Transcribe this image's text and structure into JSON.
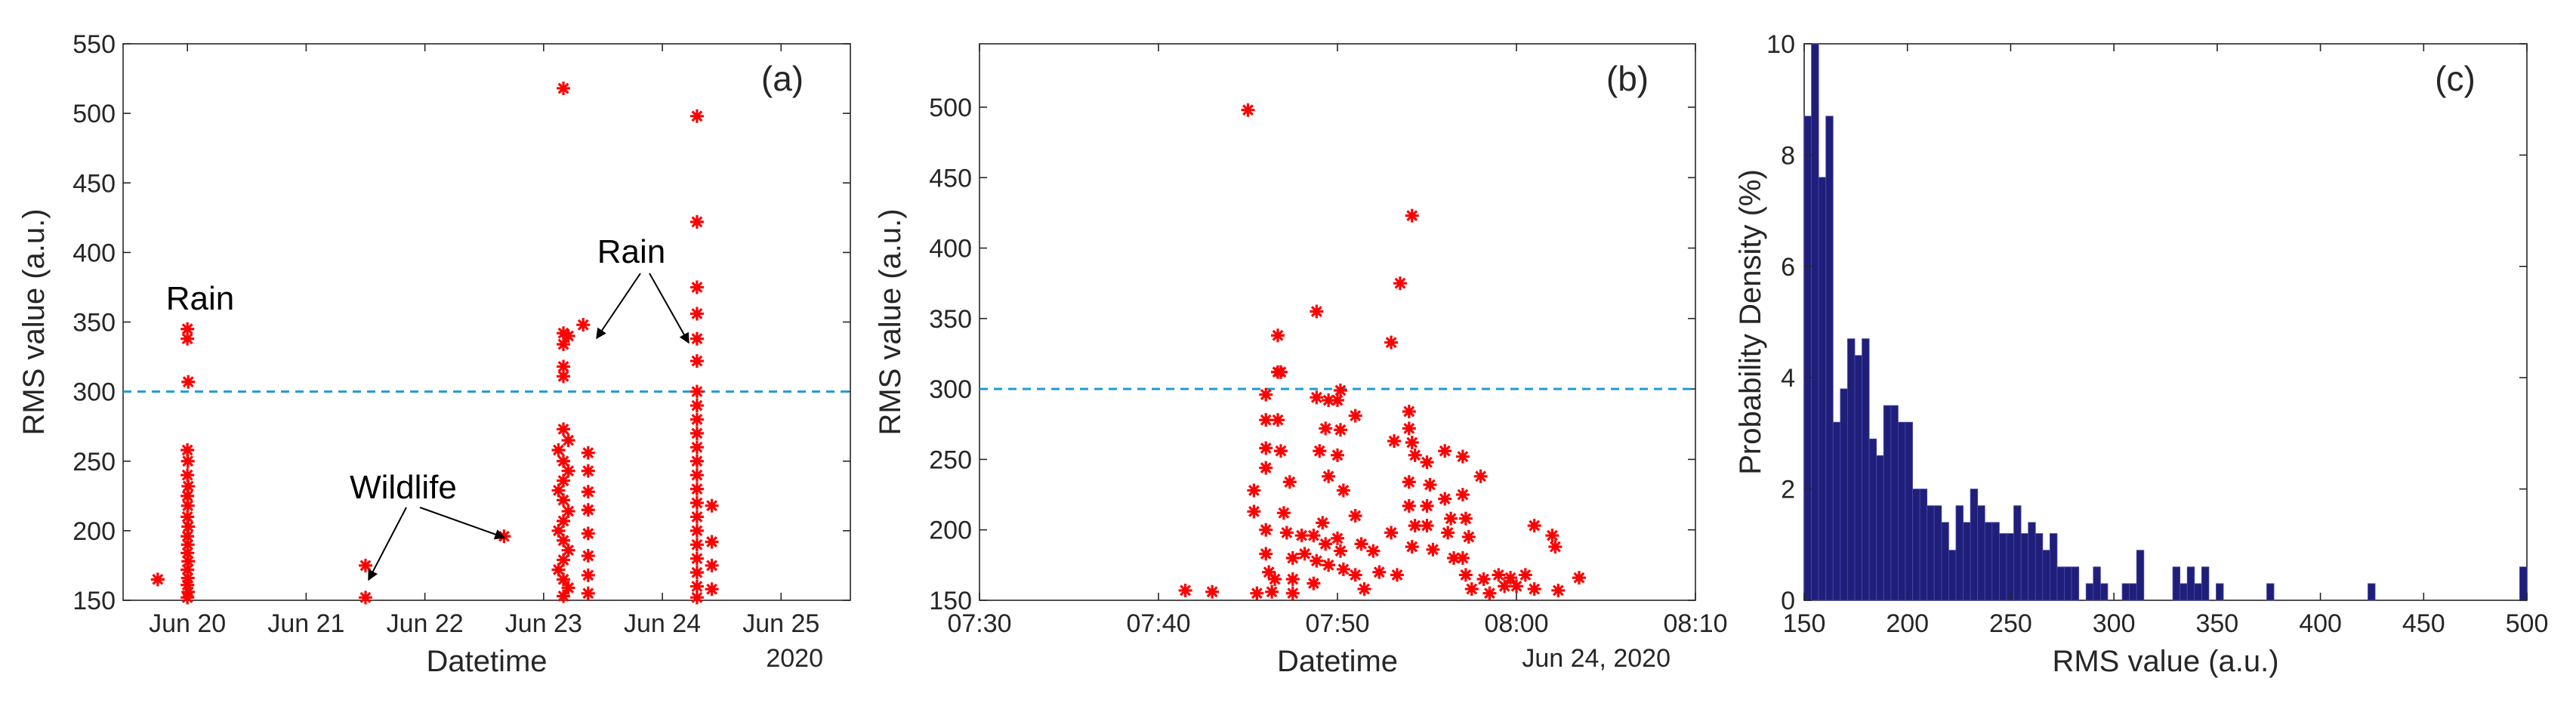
{
  "colors": {
    "marker": "#ff0000",
    "threshold": "#1f9bd7",
    "bar_fill": "#1f1f7a",
    "bar_edge": "#4a4ab0",
    "axis": "#262626"
  },
  "chart_data": [
    {
      "type": "scatter",
      "panel_label": "(a)",
      "xlabel": "Datetime",
      "ylabel": "RMS value (a.u.)",
      "x_ticks": [
        "Jun 20",
        "Jun 21",
        "Jun 22",
        "Jun 23",
        "Jun 24",
        "Jun 25"
      ],
      "x_secondary_label": "2020",
      "xlim": [
        "2020-06-19 11:00",
        "2020-06-25 14:00"
      ],
      "y_ticks": [
        "150",
        "200",
        "250",
        "300",
        "350",
        "400",
        "450",
        "500",
        "550"
      ],
      "ylim": [
        150,
        550
      ],
      "threshold": 300,
      "marker": "asterisk",
      "annotations": [
        {
          "text": "Rain",
          "target": "Jun 20"
        },
        {
          "text": "Rain",
          "target": "Jun 23 and Jun 24"
        },
        {
          "text": "Wildlife",
          "target": "Jun 21 and Jun 22"
        }
      ],
      "points": [
        [
          "2020-06-19 18:00",
          165
        ],
        [
          "2020-06-20 00:00",
          345
        ],
        [
          "2020-06-20 00:00",
          338
        ],
        [
          "2020-06-20 00:10",
          307
        ],
        [
          "2020-06-20 00:00",
          258
        ],
        [
          "2020-06-20 00:05",
          250
        ],
        [
          "2020-06-20 00:00",
          240
        ],
        [
          "2020-06-20 00:10",
          232
        ],
        [
          "2020-06-20 00:00",
          225
        ],
        [
          "2020-06-20 00:05",
          218
        ],
        [
          "2020-06-20 00:00",
          210
        ],
        [
          "2020-06-20 00:10",
          203
        ],
        [
          "2020-06-20 00:00",
          196
        ],
        [
          "2020-06-20 00:05",
          190
        ],
        [
          "2020-06-20 00:00",
          184
        ],
        [
          "2020-06-20 00:10",
          178
        ],
        [
          "2020-06-20 00:00",
          172
        ],
        [
          "2020-06-20 00:05",
          166
        ],
        [
          "2020-06-20 00:00",
          161
        ],
        [
          "2020-06-20 00:10",
          156
        ],
        [
          "2020-06-20 00:00",
          152
        ],
        [
          "2020-06-21 12:00",
          175
        ],
        [
          "2020-06-21 12:00",
          152
        ],
        [
          "2020-06-22 16:00",
          196
        ],
        [
          "2020-06-23 04:00",
          518
        ],
        [
          "2020-06-23 04:00",
          342
        ],
        [
          "2020-06-23 05:00",
          340
        ],
        [
          "2020-06-23 04:00",
          334
        ],
        [
          "2020-06-23 04:00",
          318
        ],
        [
          "2020-06-23 04:00",
          311
        ],
        [
          "2020-06-23 04:00",
          273
        ],
        [
          "2020-06-23 05:00",
          265
        ],
        [
          "2020-06-23 03:00",
          258
        ],
        [
          "2020-06-23 04:00",
          250
        ],
        [
          "2020-06-23 05:00",
          243
        ],
        [
          "2020-06-23 04:00",
          236
        ],
        [
          "2020-06-23 03:00",
          229
        ],
        [
          "2020-06-23 04:00",
          222
        ],
        [
          "2020-06-23 05:00",
          214
        ],
        [
          "2020-06-23 04:00",
          207
        ],
        [
          "2020-06-23 03:00",
          200
        ],
        [
          "2020-06-23 04:00",
          193
        ],
        [
          "2020-06-23 05:00",
          186
        ],
        [
          "2020-06-23 04:00",
          179
        ],
        [
          "2020-06-23 03:00",
          172
        ],
        [
          "2020-06-23 04:00",
          165
        ],
        [
          "2020-06-23 05:00",
          159
        ],
        [
          "2020-06-23 04:00",
          153
        ],
        [
          "2020-06-23 08:00",
          348
        ],
        [
          "2020-06-23 09:00",
          256
        ],
        [
          "2020-06-23 09:00",
          243
        ],
        [
          "2020-06-23 09:00",
          228
        ],
        [
          "2020-06-23 09:00",
          215
        ],
        [
          "2020-06-23 09:00",
          198
        ],
        [
          "2020-06-23 09:00",
          182
        ],
        [
          "2020-06-23 09:00",
          168
        ],
        [
          "2020-06-23 09:00",
          155
        ],
        [
          "2020-06-24 07:00",
          498
        ],
        [
          "2020-06-24 07:00",
          422
        ],
        [
          "2020-06-24 07:00",
          375
        ],
        [
          "2020-06-24 07:00",
          356
        ],
        [
          "2020-06-24 07:00",
          338
        ],
        [
          "2020-06-24 07:00",
          322
        ],
        [
          "2020-06-24 07:00",
          300
        ],
        [
          "2020-06-24 07:00",
          290
        ],
        [
          "2020-06-24 07:00",
          280
        ],
        [
          "2020-06-24 07:00",
          270
        ],
        [
          "2020-06-24 07:00",
          260
        ],
        [
          "2020-06-24 07:00",
          250
        ],
        [
          "2020-06-24 07:00",
          240
        ],
        [
          "2020-06-24 07:00",
          230
        ],
        [
          "2020-06-24 07:00",
          220
        ],
        [
          "2020-06-24 07:00",
          210
        ],
        [
          "2020-06-24 07:00",
          200
        ],
        [
          "2020-06-24 07:00",
          190
        ],
        [
          "2020-06-24 07:00",
          180
        ],
        [
          "2020-06-24 07:00",
          170
        ],
        [
          "2020-06-24 07:00",
          160
        ],
        [
          "2020-06-24 07:00",
          152
        ],
        [
          "2020-06-24 10:00",
          218
        ],
        [
          "2020-06-24 10:00",
          192
        ],
        [
          "2020-06-24 10:00",
          175
        ],
        [
          "2020-06-24 10:00",
          158
        ]
      ]
    },
    {
      "type": "scatter",
      "panel_label": "(b)",
      "xlabel": "Datetime",
      "ylabel": "RMS value (a.u.)",
      "x_ticks": [
        "07:30",
        "07:40",
        "07:50",
        "08:00",
        "08:10"
      ],
      "x_secondary_label": "Jun 24, 2020",
      "xlim": [
        "2020-06-24 07:30",
        "2020-06-24 08:10"
      ],
      "y_ticks": [
        "150",
        "200",
        "250",
        "300",
        "350",
        "400",
        "450",
        "500"
      ],
      "ylim": [
        150,
        545
      ],
      "threshold": 300,
      "marker": "asterisk",
      "points": [
        [
          "2020-06-24 07:41:30",
          157
        ],
        [
          "2020-06-24 07:43:00",
          156
        ],
        [
          "2020-06-24 07:45:00",
          498
        ],
        [
          "2020-06-24 07:45:20",
          228
        ],
        [
          "2020-06-24 07:45:20",
          213
        ],
        [
          "2020-06-24 07:45:30",
          155
        ],
        [
          "2020-06-24 07:46:00",
          296
        ],
        [
          "2020-06-24 07:46:00",
          278
        ],
        [
          "2020-06-24 07:46:00",
          258
        ],
        [
          "2020-06-24 07:46:00",
          244
        ],
        [
          "2020-06-24 07:46:00",
          200
        ],
        [
          "2020-06-24 07:46:00",
          183
        ],
        [
          "2020-06-24 07:46:10",
          170
        ],
        [
          "2020-06-24 07:46:30",
          165
        ],
        [
          "2020-06-24 07:46:20",
          156
        ],
        [
          "2020-06-24 07:46:40",
          338
        ],
        [
          "2020-06-24 07:46:40",
          312
        ],
        [
          "2020-06-24 07:46:50",
          312
        ],
        [
          "2020-06-24 07:46:40",
          278
        ],
        [
          "2020-06-24 07:46:50",
          256
        ],
        [
          "2020-06-24 07:47:20",
          234
        ],
        [
          "2020-06-24 07:47:00",
          212
        ],
        [
          "2020-06-24 07:47:10",
          198
        ],
        [
          "2020-06-24 07:47:30",
          180
        ],
        [
          "2020-06-24 07:47:30",
          165
        ],
        [
          "2020-06-24 07:47:30",
          155
        ],
        [
          "2020-06-24 07:48:00",
          196
        ],
        [
          "2020-06-24 07:48:10",
          183
        ],
        [
          "2020-06-24 07:48:50",
          355
        ],
        [
          "2020-06-24 07:48:50",
          294
        ],
        [
          "2020-06-24 07:49:00",
          256
        ],
        [
          "2020-06-24 07:48:40",
          196
        ],
        [
          "2020-06-24 07:48:50",
          178
        ],
        [
          "2020-06-24 07:48:40",
          162
        ],
        [
          "2020-06-24 07:49:30",
          292
        ],
        [
          "2020-06-24 07:49:20",
          272
        ],
        [
          "2020-06-24 07:49:30",
          238
        ],
        [
          "2020-06-24 07:49:10",
          205
        ],
        [
          "2020-06-24 07:49:20",
          190
        ],
        [
          "2020-06-24 07:49:30",
          175
        ],
        [
          "2020-06-24 07:50:10",
          299
        ],
        [
          "2020-06-24 07:50:00",
          292
        ],
        [
          "2020-06-24 07:50:10",
          271
        ],
        [
          "2020-06-24 07:50:00",
          253
        ],
        [
          "2020-06-24 07:50:20",
          228
        ],
        [
          "2020-06-24 07:50:00",
          194
        ],
        [
          "2020-06-24 07:50:10",
          185
        ],
        [
          "2020-06-24 07:50:20",
          172
        ],
        [
          "2020-06-24 07:51:00",
          281
        ],
        [
          "2020-06-24 07:51:00",
          210
        ],
        [
          "2020-06-24 07:51:20",
          190
        ],
        [
          "2020-06-24 07:51:00",
          168
        ],
        [
          "2020-06-24 07:51:30",
          158
        ],
        [
          "2020-06-24 07:52:00",
          185
        ],
        [
          "2020-06-24 07:52:20",
          170
        ],
        [
          "2020-06-24 07:53:00",
          333
        ],
        [
          "2020-06-24 07:53:10",
          263
        ],
        [
          "2020-06-24 07:53:00",
          198
        ],
        [
          "2020-06-24 07:53:20",
          168
        ],
        [
          "2020-06-24 07:53:30",
          375
        ],
        [
          "2020-06-24 07:54:10",
          423
        ],
        [
          "2020-06-24 07:54:00",
          284
        ],
        [
          "2020-06-24 07:54:00",
          272
        ],
        [
          "2020-06-24 07:54:10",
          262
        ],
        [
          "2020-06-24 07:54:20",
          253
        ],
        [
          "2020-06-24 07:54:00",
          234
        ],
        [
          "2020-06-24 07:54:00",
          217
        ],
        [
          "2020-06-24 07:54:20",
          203
        ],
        [
          "2020-06-24 07:54:10",
          188
        ],
        [
          "2020-06-24 07:55:00",
          248
        ],
        [
          "2020-06-24 07:55:10",
          232
        ],
        [
          "2020-06-24 07:55:00",
          217
        ],
        [
          "2020-06-24 07:55:00",
          203
        ],
        [
          "2020-06-24 07:55:20",
          186
        ],
        [
          "2020-06-24 07:56:00",
          256
        ],
        [
          "2020-06-24 07:56:00",
          222
        ],
        [
          "2020-06-24 07:56:20",
          208
        ],
        [
          "2020-06-24 07:56:10",
          198
        ],
        [
          "2020-06-24 07:56:30",
          180
        ],
        [
          "2020-06-24 07:57:00",
          252
        ],
        [
          "2020-06-24 07:57:00",
          225
        ],
        [
          "2020-06-24 07:57:10",
          208
        ],
        [
          "2020-06-24 07:57:20",
          195
        ],
        [
          "2020-06-24 07:57:00",
          180
        ],
        [
          "2020-06-24 07:57:10",
          168
        ],
        [
          "2020-06-24 07:57:30",
          158
        ],
        [
          "2020-06-24 07:58:00",
          238
        ],
        [
          "2020-06-24 07:58:10",
          165
        ],
        [
          "2020-06-24 07:58:30",
          155
        ],
        [
          "2020-06-24 07:59:00",
          168
        ],
        [
          "2020-06-24 07:59:20",
          160
        ],
        [
          "2020-06-24 07:59:40",
          166
        ],
        [
          "2020-06-24 08:00:00",
          160
        ],
        [
          "2020-06-24 08:00:30",
          168
        ],
        [
          "2020-06-24 08:01:00",
          203
        ],
        [
          "2020-06-24 08:01:00",
          158
        ],
        [
          "2020-06-24 08:02:00",
          196
        ],
        [
          "2020-06-24 08:02:10",
          188
        ],
        [
          "2020-06-24 08:02:20",
          157
        ],
        [
          "2020-06-24 08:03:30",
          166
        ]
      ]
    },
    {
      "type": "bar",
      "subtype": "histogram",
      "panel_label": "(c)",
      "xlabel": "RMS value (a.u.)",
      "ylabel": "Probability Density (%)",
      "x_ticks": [
        "150",
        "200",
        "250",
        "300",
        "350",
        "400",
        "450",
        "500"
      ],
      "xlim": [
        150,
        500
      ],
      "y_ticks": [
        "0",
        "2",
        "4",
        "6",
        "8",
        "10"
      ],
      "ylim": [
        0,
        10
      ],
      "bin_width": 3.5,
      "bin_start": 150,
      "bins": [
        [
          151.75,
          8.7
        ],
        [
          155.25,
          10.0
        ],
        [
          158.75,
          7.6
        ],
        [
          162.25,
          8.7
        ],
        [
          165.75,
          3.2
        ],
        [
          169.25,
          3.8
        ],
        [
          172.75,
          4.7
        ],
        [
          176.25,
          4.4
        ],
        [
          179.75,
          4.7
        ],
        [
          183.25,
          2.9
        ],
        [
          186.75,
          2.6
        ],
        [
          190.25,
          3.5
        ],
        [
          193.75,
          3.5
        ],
        [
          197.25,
          3.2
        ],
        [
          200.75,
          3.2
        ],
        [
          204.25,
          2.0
        ],
        [
          207.75,
          2.0
        ],
        [
          211.25,
          1.7
        ],
        [
          214.75,
          1.7
        ],
        [
          218.25,
          1.4
        ],
        [
          221.75,
          0.9
        ],
        [
          225.25,
          1.7
        ],
        [
          228.75,
          1.4
        ],
        [
          232.25,
          2.0
        ],
        [
          235.75,
          1.7
        ],
        [
          239.25,
          1.4
        ],
        [
          242.75,
          1.4
        ],
        [
          246.25,
          1.2
        ],
        [
          249.75,
          1.2
        ],
        [
          253.25,
          1.7
        ],
        [
          256.75,
          1.2
        ],
        [
          260.25,
          1.4
        ],
        [
          263.75,
          1.2
        ],
        [
          267.25,
          0.9
        ],
        [
          270.75,
          1.2
        ],
        [
          274.25,
          0.6
        ],
        [
          277.75,
          0.6
        ],
        [
          281.25,
          0.6
        ],
        [
          288.25,
          0.3
        ],
        [
          291.75,
          0.6
        ],
        [
          295.25,
          0.3
        ],
        [
          305.75,
          0.3
        ],
        [
          309.25,
          0.3
        ],
        [
          312.75,
          0.9
        ],
        [
          330.25,
          0.6
        ],
        [
          333.75,
          0.3
        ],
        [
          337.25,
          0.6
        ],
        [
          340.75,
          0.3
        ],
        [
          344.25,
          0.6
        ],
        [
          351.25,
          0.3
        ],
        [
          375.75,
          0.3
        ],
        [
          424.75,
          0.3
        ],
        [
          498.25,
          0.6
        ]
      ]
    }
  ]
}
